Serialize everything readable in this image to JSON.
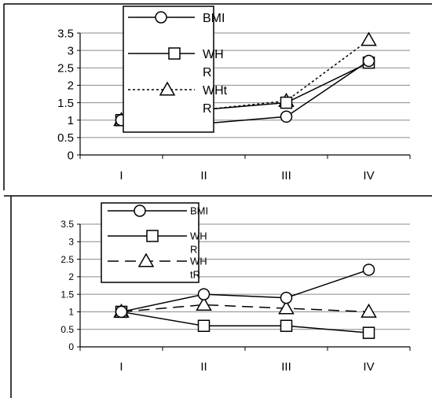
{
  "chart_data": [
    {
      "type": "line",
      "categories": [
        "I",
        "II",
        "III",
        "IV"
      ],
      "ylim": [
        0,
        3.5
      ],
      "yticks": [
        "0",
        "0.5",
        "1",
        "1.5",
        "2",
        "2.5",
        "3",
        "3.5"
      ],
      "grid": true,
      "legend": "top-center",
      "series": [
        {
          "name": "BMI",
          "legend_lines": [
            "BMI"
          ],
          "marker": "circle",
          "style": "solid",
          "values": [
            1.0,
            0.9,
            1.1,
            2.7
          ]
        },
        {
          "name": "WHR",
          "legend_lines": [
            "WH",
            "R"
          ],
          "marker": "square",
          "style": "solid",
          "values": [
            1.0,
            1.3,
            1.5,
            2.65
          ]
        },
        {
          "name": "WHtR",
          "legend_lines": [
            "WHt",
            "R"
          ],
          "marker": "triangle",
          "style": "dotted",
          "values": [
            1.0,
            1.3,
            1.55,
            3.3
          ]
        }
      ]
    },
    {
      "type": "line",
      "categories": [
        "I",
        "II",
        "III",
        "IV"
      ],
      "ylim": [
        0,
        3.5
      ],
      "yticks": [
        "0",
        "0.5",
        "1",
        "1.5",
        "2",
        "2.5",
        "3",
        "3.5"
      ],
      "grid": true,
      "legend": "top-center",
      "series": [
        {
          "name": "BMI",
          "legend_lines": [
            "BMI"
          ],
          "marker": "circle",
          "style": "solid",
          "values": [
            1.0,
            1.5,
            1.4,
            2.2
          ]
        },
        {
          "name": "WHR",
          "legend_lines": [
            "WH",
            "R"
          ],
          "marker": "square",
          "style": "solid",
          "values": [
            1.0,
            0.6,
            0.6,
            0.4
          ]
        },
        {
          "name": "WHtR",
          "legend_lines": [
            "WH",
            "tR"
          ],
          "marker": "triangle",
          "style": "dashed",
          "values": [
            1.0,
            1.2,
            1.1,
            1.0
          ]
        }
      ]
    }
  ]
}
